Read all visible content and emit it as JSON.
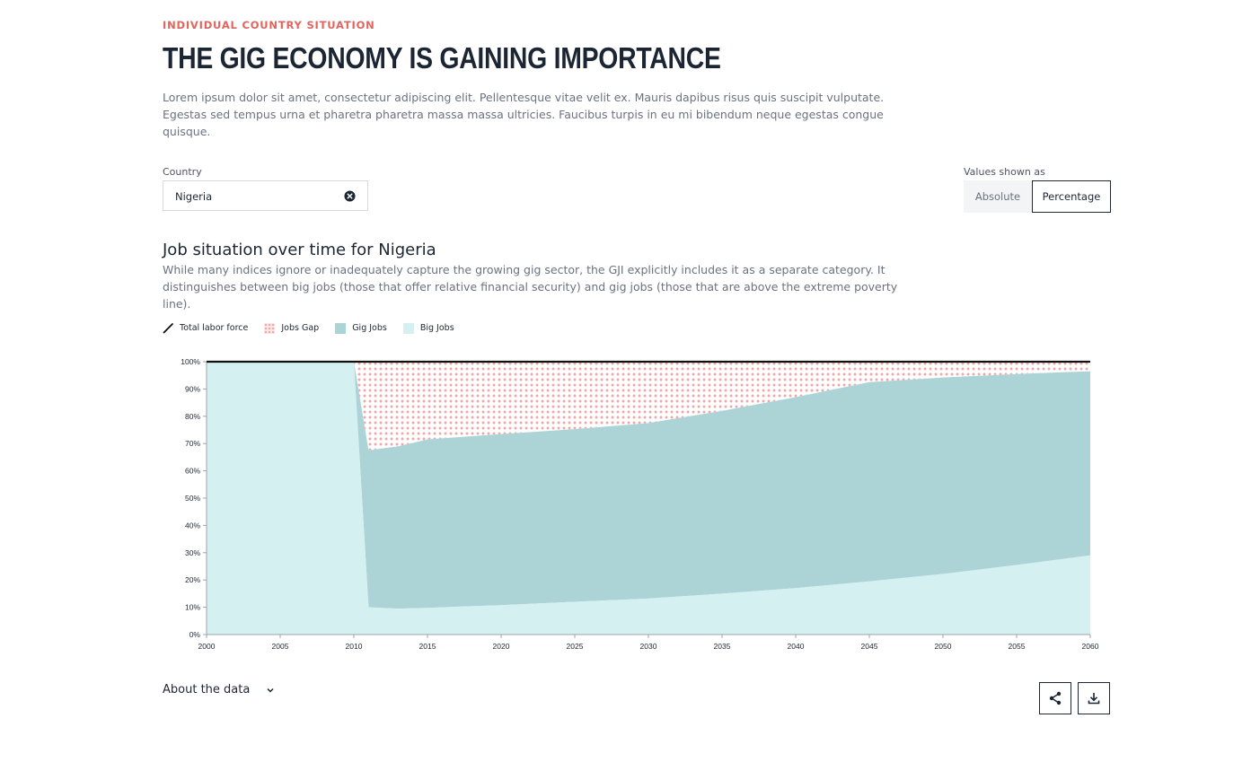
{
  "header": {
    "eyebrow": "INDIVIDUAL COUNTRY SITUATION",
    "title": "THE GIG ECONOMY IS GAINING IMPORTANCE",
    "intro": "Lorem ipsum dolor sit amet, consectetur adipiscing elit. Pellentesque vitae velit ex. Mauris dapibus risus quis suscipit vulputate. Egestas sed tempus urna et pharetra pharetra massa massa ultricies. Faucibus turpis in eu mi bibendum neque egestas congue quisque."
  },
  "controls": {
    "country_label": "Country",
    "country_value": "Nigeria",
    "values_label": "Values shown as",
    "options": [
      "Absolute",
      "Percentage"
    ],
    "selected": "Percentage"
  },
  "chart_section": {
    "title": "Job situation over time for Nigeria",
    "description": "While many indices ignore or inadequately capture the growing gig sector, the GJI explicitly includes it as a separate category. It distinguishes between big jobs (those that offer relative financial security) and gig jobs (those that are above the extreme poverty line)."
  },
  "legend": {
    "total": "Total labor force",
    "gap": "Jobs Gap",
    "gig": "Gig Jobs",
    "big": "Big Jobs"
  },
  "colors": {
    "accent": "#e0655f",
    "big_jobs": "#d4f0f1",
    "gig_jobs": "#acd4d6",
    "gap_dot": "#f2a6a6",
    "total_line": "#111111"
  },
  "chart_data": {
    "type": "area",
    "stacked": true,
    "x_ticks": [
      2000,
      2005,
      2010,
      2015,
      2020,
      2025,
      2030,
      2035,
      2040,
      2045,
      2050,
      2055,
      2060
    ],
    "y_ticks": [
      "0%",
      "10%",
      "20%",
      "30%",
      "40%",
      "50%",
      "60%",
      "70%",
      "80%",
      "90%",
      "100%"
    ],
    "ylim": [
      0,
      100
    ],
    "xlim": [
      2000,
      2060
    ],
    "series": [
      {
        "name": "Big Jobs",
        "x": [
          2000,
          2010,
          2011,
          2013,
          2015,
          2020,
          2025,
          2030,
          2035,
          2040,
          2045,
          2050,
          2055,
          2060
        ],
        "values": [
          100,
          100,
          10,
          9.5,
          9.8,
          10.8,
          12,
          13.2,
          15,
          17,
          19.5,
          22.2,
          25.5,
          29
        ]
      },
      {
        "name": "Gig Jobs",
        "x": [
          2000,
          2010,
          2011,
          2013,
          2015,
          2020,
          2025,
          2030,
          2035,
          2040,
          2045,
          2050,
          2055,
          2060
        ],
        "values": [
          0,
          0,
          57.5,
          59.5,
          61.7,
          62.7,
          63.3,
          64.3,
          67,
          70,
          73,
          72,
          70,
          67.5
        ]
      },
      {
        "name": "Jobs Gap",
        "x": [
          2000,
          2010,
          2011,
          2013,
          2015,
          2020,
          2025,
          2030,
          2035,
          2040,
          2045,
          2050,
          2055,
          2060
        ],
        "values": [
          0,
          0,
          32.5,
          31,
          28.5,
          26.5,
          24.7,
          22.5,
          18,
          13,
          7.5,
          5.8,
          4.5,
          3.5
        ]
      }
    ],
    "total_labor_force": 100
  },
  "footer": {
    "about_label": "About the data"
  }
}
